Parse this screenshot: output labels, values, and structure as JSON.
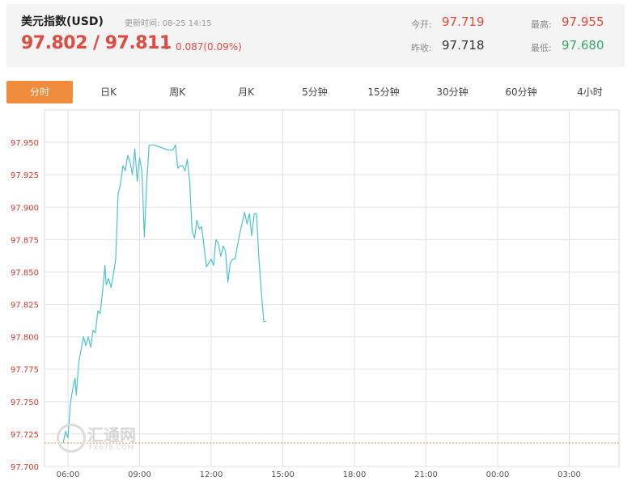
{
  "header": {
    "title": "美元指数(USD)",
    "update_label": "更新时间:",
    "update_time": "08-25 14:15",
    "price": "97.802 / 97.811",
    "arrow": "⬆",
    "change": "0.087(0.09%)",
    "open_label": "今开:",
    "open_value": "97.719",
    "prev_close_label": "昨收:",
    "prev_close_value": "97.718",
    "high_label": "最高:",
    "high_value": "97.955",
    "low_label": "最低:",
    "low_value": "97.680"
  },
  "colors": {
    "up": "#e04a3f",
    "down": "#36a56f",
    "accent": "#f08c3c",
    "line": "#4cc3cf",
    "axis_label": "#cc3a2a"
  },
  "tabs": [
    {
      "label": "分时",
      "active": true
    },
    {
      "label": "日K"
    },
    {
      "label": "周K"
    },
    {
      "label": "月K"
    },
    {
      "label": "5分钟"
    },
    {
      "label": "15分钟"
    },
    {
      "label": "30分钟"
    },
    {
      "label": "60分钟"
    },
    {
      "label": "4小时"
    }
  ],
  "watermark": {
    "text": "汇通网",
    "sub": "FX678.COM"
  },
  "chart_data": {
    "type": "line",
    "ylim": [
      97.7,
      97.975
    ],
    "yticks": [
      "97.950",
      "97.925",
      "97.900",
      "97.875",
      "97.850",
      "97.825",
      "97.800",
      "97.775",
      "97.750",
      "97.725",
      "97.700"
    ],
    "xticks": [
      "06:00",
      "09:00",
      "12:00",
      "15:00",
      "18:00",
      "21:00",
      "00:00",
      "03:00"
    ],
    "prev_close": 97.718,
    "grid": true,
    "series": [
      {
        "values": [
          [
            5.8,
            97.718
          ],
          [
            5.9,
            97.727
          ],
          [
            6.0,
            97.722
          ],
          [
            6.1,
            97.748
          ],
          [
            6.2,
            97.76
          ],
          [
            6.3,
            97.768
          ],
          [
            6.35,
            97.755
          ],
          [
            6.45,
            97.78
          ],
          [
            6.55,
            97.79
          ],
          [
            6.65,
            97.8
          ],
          [
            6.75,
            97.793
          ],
          [
            6.85,
            97.8
          ],
          [
            6.95,
            97.792
          ],
          [
            7.05,
            97.805
          ],
          [
            7.15,
            97.803
          ],
          [
            7.25,
            97.82
          ],
          [
            7.35,
            97.818
          ],
          [
            7.45,
            97.835
          ],
          [
            7.55,
            97.855
          ],
          [
            7.6,
            97.84
          ],
          [
            7.7,
            97.845
          ],
          [
            7.8,
            97.838
          ],
          [
            7.9,
            97.848
          ],
          [
            8.0,
            97.86
          ],
          [
            8.1,
            97.91
          ],
          [
            8.2,
            97.918
          ],
          [
            8.3,
            97.932
          ],
          [
            8.4,
            97.928
          ],
          [
            8.5,
            97.94
          ],
          [
            8.6,
            97.935
          ],
          [
            8.7,
            97.925
          ],
          [
            8.8,
            97.945
          ],
          [
            8.9,
            97.92
          ],
          [
            9.0,
            97.938
          ],
          [
            9.1,
            97.928
          ],
          [
            9.2,
            97.877
          ],
          [
            9.3,
            97.92
          ],
          [
            9.4,
            97.948
          ],
          [
            9.6,
            97.948
          ],
          [
            9.9,
            97.946
          ],
          [
            10.2,
            97.944
          ],
          [
            10.4,
            97.944
          ],
          [
            10.5,
            97.948
          ],
          [
            10.6,
            97.93
          ],
          [
            10.7,
            97.932
          ],
          [
            10.8,
            97.932
          ],
          [
            10.9,
            97.928
          ],
          [
            11.0,
            97.937
          ],
          [
            11.1,
            97.92
          ],
          [
            11.2,
            97.882
          ],
          [
            11.3,
            97.876
          ],
          [
            11.4,
            97.89
          ],
          [
            11.5,
            97.883
          ],
          [
            11.6,
            97.885
          ],
          [
            11.7,
            97.87
          ],
          [
            11.8,
            97.854
          ],
          [
            11.9,
            97.857
          ],
          [
            12.0,
            97.86
          ],
          [
            12.1,
            97.855
          ],
          [
            12.2,
            97.875
          ],
          [
            12.3,
            97.872
          ],
          [
            12.4,
            97.862
          ],
          [
            12.5,
            97.87
          ],
          [
            12.6,
            97.866
          ],
          [
            12.7,
            97.842
          ],
          [
            12.8,
            97.857
          ],
          [
            12.9,
            97.86
          ],
          [
            13.0,
            97.86
          ],
          [
            13.1,
            97.87
          ],
          [
            13.2,
            97.88
          ],
          [
            13.3,
            97.888
          ],
          [
            13.4,
            97.896
          ],
          [
            13.5,
            97.887
          ],
          [
            13.6,
            97.895
          ],
          [
            13.7,
            97.878
          ],
          [
            13.8,
            97.895
          ],
          [
            13.9,
            97.895
          ],
          [
            14.0,
            97.86
          ],
          [
            14.1,
            97.835
          ],
          [
            14.2,
            97.812
          ],
          [
            14.3,
            97.812
          ]
        ]
      }
    ]
  }
}
